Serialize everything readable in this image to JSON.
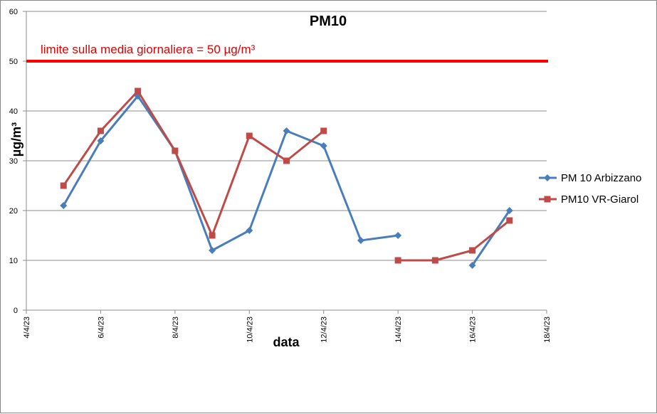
{
  "chart_data": {
    "type": "line",
    "title": "PM10",
    "xlabel": "data",
    "ylabel": "µg/m³",
    "ylim": [
      0,
      60
    ],
    "yticks": [
      "0",
      "10",
      "20",
      "30",
      "40",
      "50",
      "60"
    ],
    "xlim": [
      "2023-04-04",
      "2023-04-18"
    ],
    "xticks": [
      {
        "date": "2023-04-04",
        "label": "4/4/23"
      },
      {
        "date": "2023-04-06",
        "label": "6/4/23"
      },
      {
        "date": "2023-04-08",
        "label": "8/4/23"
      },
      {
        "date": "2023-04-10",
        "label": "10/4/23"
      },
      {
        "date": "2023-04-12",
        "label": "12/4/23"
      },
      {
        "date": "2023-04-14",
        "label": "14/4/23"
      },
      {
        "date": "2023-04-16",
        "label": "16/4/23"
      },
      {
        "date": "2023-04-18",
        "label": "18/4/23"
      }
    ],
    "grid": true,
    "legend_position": "right",
    "limit_line": {
      "value": 50,
      "label": "limite sulla media giornaliera = 50 µg/m³",
      "color": "#ff0000"
    },
    "series": [
      {
        "name": "PM 10 Arbizzano",
        "color": "#4a7ebb",
        "marker": "diamond",
        "points": [
          {
            "x": "2023-04-05",
            "y": 21
          },
          {
            "x": "2023-04-06",
            "y": 34
          },
          {
            "x": "2023-04-07",
            "y": 43
          },
          {
            "x": "2023-04-08",
            "y": 32
          },
          {
            "x": "2023-04-09",
            "y": 12
          },
          {
            "x": "2023-04-10",
            "y": 16
          },
          {
            "x": "2023-04-11",
            "y": 36
          },
          {
            "x": "2023-04-12",
            "y": 33
          },
          {
            "x": "2023-04-13",
            "y": 14
          },
          {
            "x": "2023-04-14",
            "y": 15
          },
          {
            "x": "2023-04-16",
            "y": 9
          },
          {
            "x": "2023-04-17",
            "y": 20
          }
        ]
      },
      {
        "name": "PM10 VR-Giarol",
        "color": "#be4b48",
        "marker": "square",
        "points": [
          {
            "x": "2023-04-05",
            "y": 25
          },
          {
            "x": "2023-04-06",
            "y": 36
          },
          {
            "x": "2023-04-07",
            "y": 44
          },
          {
            "x": "2023-04-08",
            "y": 32
          },
          {
            "x": "2023-04-09",
            "y": 15
          },
          {
            "x": "2023-04-10",
            "y": 35
          },
          {
            "x": "2023-04-11",
            "y": 30
          },
          {
            "x": "2023-04-12",
            "y": 36
          },
          {
            "x": "2023-04-14",
            "y": 10
          },
          {
            "x": "2023-04-15",
            "y": 10
          },
          {
            "x": "2023-04-16",
            "y": 12
          },
          {
            "x": "2023-04-17",
            "y": 18
          }
        ]
      }
    ]
  }
}
